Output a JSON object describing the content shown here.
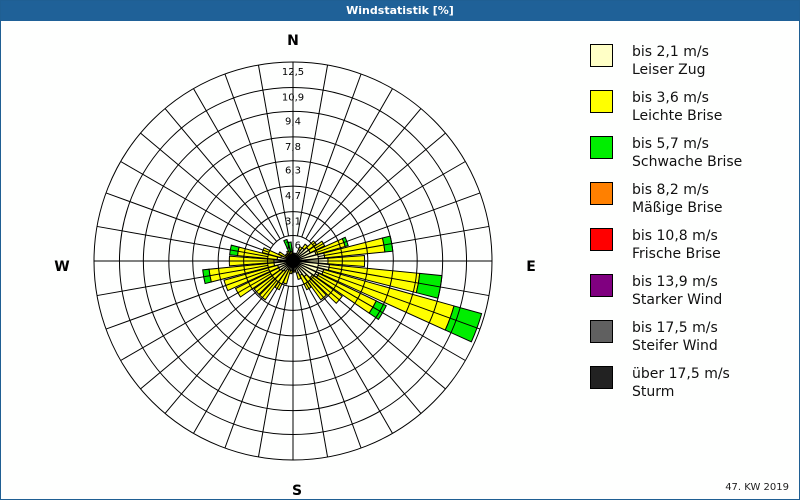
{
  "title": "Windstatistik [%]",
  "footer": "47. KW 2019",
  "directions": {
    "n": "N",
    "e": "E",
    "s": "S",
    "w": "W"
  },
  "ring_labels": [
    "1,6",
    "3,1",
    "4,7",
    "6,3",
    "7,8",
    "9,4",
    "10,9",
    "12,5"
  ],
  "legend": [
    {
      "range": "bis 2,1 m/s",
      "name": "Leiser Zug",
      "color": "#ffffc6"
    },
    {
      "range": "bis 3,6 m/s",
      "name": "Leichte Brise",
      "color": "#ffff00"
    },
    {
      "range": "bis 5,7 m/s",
      "name": "Schwache Brise",
      "color": "#00ee00"
    },
    {
      "range": "bis 8,2 m/s",
      "name": "Mäßige Brise",
      "color": "#ff8000"
    },
    {
      "range": "bis 10,8 m/s",
      "name": "Frische Brise",
      "color": "#ff0000"
    },
    {
      "range": "bis 13,9 m/s",
      "name": "Starker Wind",
      "color": "#800080"
    },
    {
      "range": "bis 17,5 m/s",
      "name": "Steifer Wind",
      "color": "#606060"
    },
    {
      "range": "über 17,5 m/s",
      "name": "Sturm",
      "color": "#222222"
    }
  ],
  "chart_data": {
    "type": "windrose",
    "title": "Windstatistik [%]",
    "unit": "%",
    "rmax": 12.5,
    "rings": [
      1.6,
      3.1,
      4.7,
      6.3,
      7.8,
      9.4,
      10.9,
      12.5
    ],
    "sector_width_deg": 10,
    "series": [
      "bis 2,1 m/s",
      "bis 3,6 m/s",
      "bis 5,7 m/s",
      "bis 8,2 m/s",
      "bis 10,8 m/s",
      "bis 13,9 m/s",
      "bis 17,5 m/s",
      "über 17,5 m/s"
    ],
    "sectors": [
      {
        "dir": 0,
        "cum": [
          0.4,
          0.4,
          0.4
        ]
      },
      {
        "dir": 10,
        "cum": [
          0.5,
          0.5,
          0.5
        ]
      },
      {
        "dir": 20,
        "cum": [
          0.5,
          0.5,
          0.5
        ]
      },
      {
        "dir": 30,
        "cum": [
          0.8,
          1.0,
          1.0
        ]
      },
      {
        "dir": 40,
        "cum": [
          1.0,
          1.3,
          1.3
        ]
      },
      {
        "dir": 50,
        "cum": [
          1.2,
          1.8,
          1.8
        ]
      },
      {
        "dir": 60,
        "cum": [
          1.2,
          2.2,
          2.2
        ]
      },
      {
        "dir": 70,
        "cum": [
          1.5,
          3.4,
          3.6
        ]
      },
      {
        "dir": 80,
        "cum": [
          2.0,
          5.8,
          6.3
        ]
      },
      {
        "dir": 90,
        "cum": [
          2.2,
          4.5,
          4.5
        ]
      },
      {
        "dir": 100,
        "cum": [
          2.3,
          8.0,
          9.4
        ]
      },
      {
        "dir": 110,
        "cum": [
          2.0,
          10.5,
          12.3
        ]
      },
      {
        "dir": 120,
        "cum": [
          1.8,
          5.8,
          6.5
        ]
      },
      {
        "dir": 130,
        "cum": [
          1.5,
          3.8,
          3.8
        ]
      },
      {
        "dir": 140,
        "cum": [
          1.2,
          3.0,
          3.0
        ]
      },
      {
        "dir": 150,
        "cum": [
          1.0,
          2.0,
          2.0
        ]
      },
      {
        "dir": 160,
        "cum": [
          0.8,
          1.2,
          1.2
        ]
      },
      {
        "dir": 170,
        "cum": [
          0.6,
          0.7,
          0.7
        ]
      },
      {
        "dir": 180,
        "cum": [
          0.6,
          0.7,
          0.7
        ]
      },
      {
        "dir": 190,
        "cum": [
          0.6,
          0.8,
          0.8
        ]
      },
      {
        "dir": 200,
        "cum": [
          0.6,
          1.5,
          1.5
        ]
      },
      {
        "dir": 210,
        "cum": [
          0.6,
          2.0,
          2.0
        ]
      },
      {
        "dir": 220,
        "cum": [
          0.8,
          3.0,
          3.0
        ]
      },
      {
        "dir": 230,
        "cum": [
          0.9,
          3.0,
          3.0
        ]
      },
      {
        "dir": 240,
        "cum": [
          1.0,
          4.0,
          4.0
        ]
      },
      {
        "dir": 250,
        "cum": [
          1.0,
          4.5,
          4.5
        ]
      },
      {
        "dir": 260,
        "cum": [
          1.2,
          5.3,
          5.7
        ]
      },
      {
        "dir": 270,
        "cum": [
          1.2,
          4.0,
          4.0
        ]
      },
      {
        "dir": 280,
        "cum": [
          1.0,
          3.5,
          4.0
        ]
      },
      {
        "dir": 290,
        "cum": [
          0.8,
          2.0,
          2.0
        ]
      },
      {
        "dir": 300,
        "cum": [
          0.5,
          1.0,
          1.0
        ]
      },
      {
        "dir": 310,
        "cum": [
          0.5,
          0.6,
          0.6
        ]
      },
      {
        "dir": 320,
        "cum": [
          0.5,
          0.6,
          0.6
        ]
      },
      {
        "dir": 330,
        "cum": [
          0.5,
          0.7,
          0.7
        ]
      },
      {
        "dir": 340,
        "cum": [
          0.4,
          0.6,
          1.4
        ]
      },
      {
        "dir": 350,
        "cum": [
          0.4,
          0.6,
          1.2
        ]
      }
    ],
    "legend_position": "right",
    "annotation": "47. KW 2019"
  }
}
